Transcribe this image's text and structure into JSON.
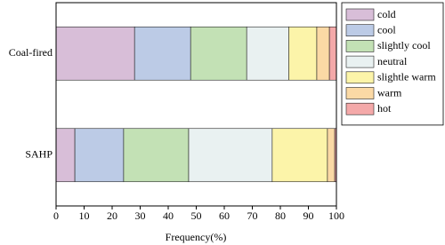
{
  "chart_data": {
    "type": "bar",
    "orientation": "horizontal",
    "stacked": true,
    "categories": [
      "Coal-fired",
      "SAHP"
    ],
    "series": [
      {
        "name": "cold",
        "color": "#d8bed8",
        "values": [
          28,
          6.7
        ]
      },
      {
        "name": "cool",
        "color": "#bccbe6",
        "values": [
          20,
          17.4
        ]
      },
      {
        "name": "slightly cool",
        "color": "#c3e1b5",
        "values": [
          20,
          23.2
        ]
      },
      {
        "name": "neutral",
        "color": "#e9f1f1",
        "values": [
          15,
          29.8
        ]
      },
      {
        "name": "slightle warm",
        "color": "#fcf4a9",
        "values": [
          10,
          19.7
        ]
      },
      {
        "name": "warm",
        "color": "#fbd9a5",
        "values": [
          4.5,
          2.6
        ]
      },
      {
        "name": "hot",
        "color": "#f4a9a9",
        "values": [
          2.5,
          0.6
        ]
      }
    ],
    "xlabel": "Frequency(%)",
    "xlim": [
      0,
      100
    ],
    "xticks": [
      0,
      10,
      20,
      30,
      40,
      50,
      60,
      70,
      80,
      90,
      100
    ],
    "legend": "right"
  }
}
